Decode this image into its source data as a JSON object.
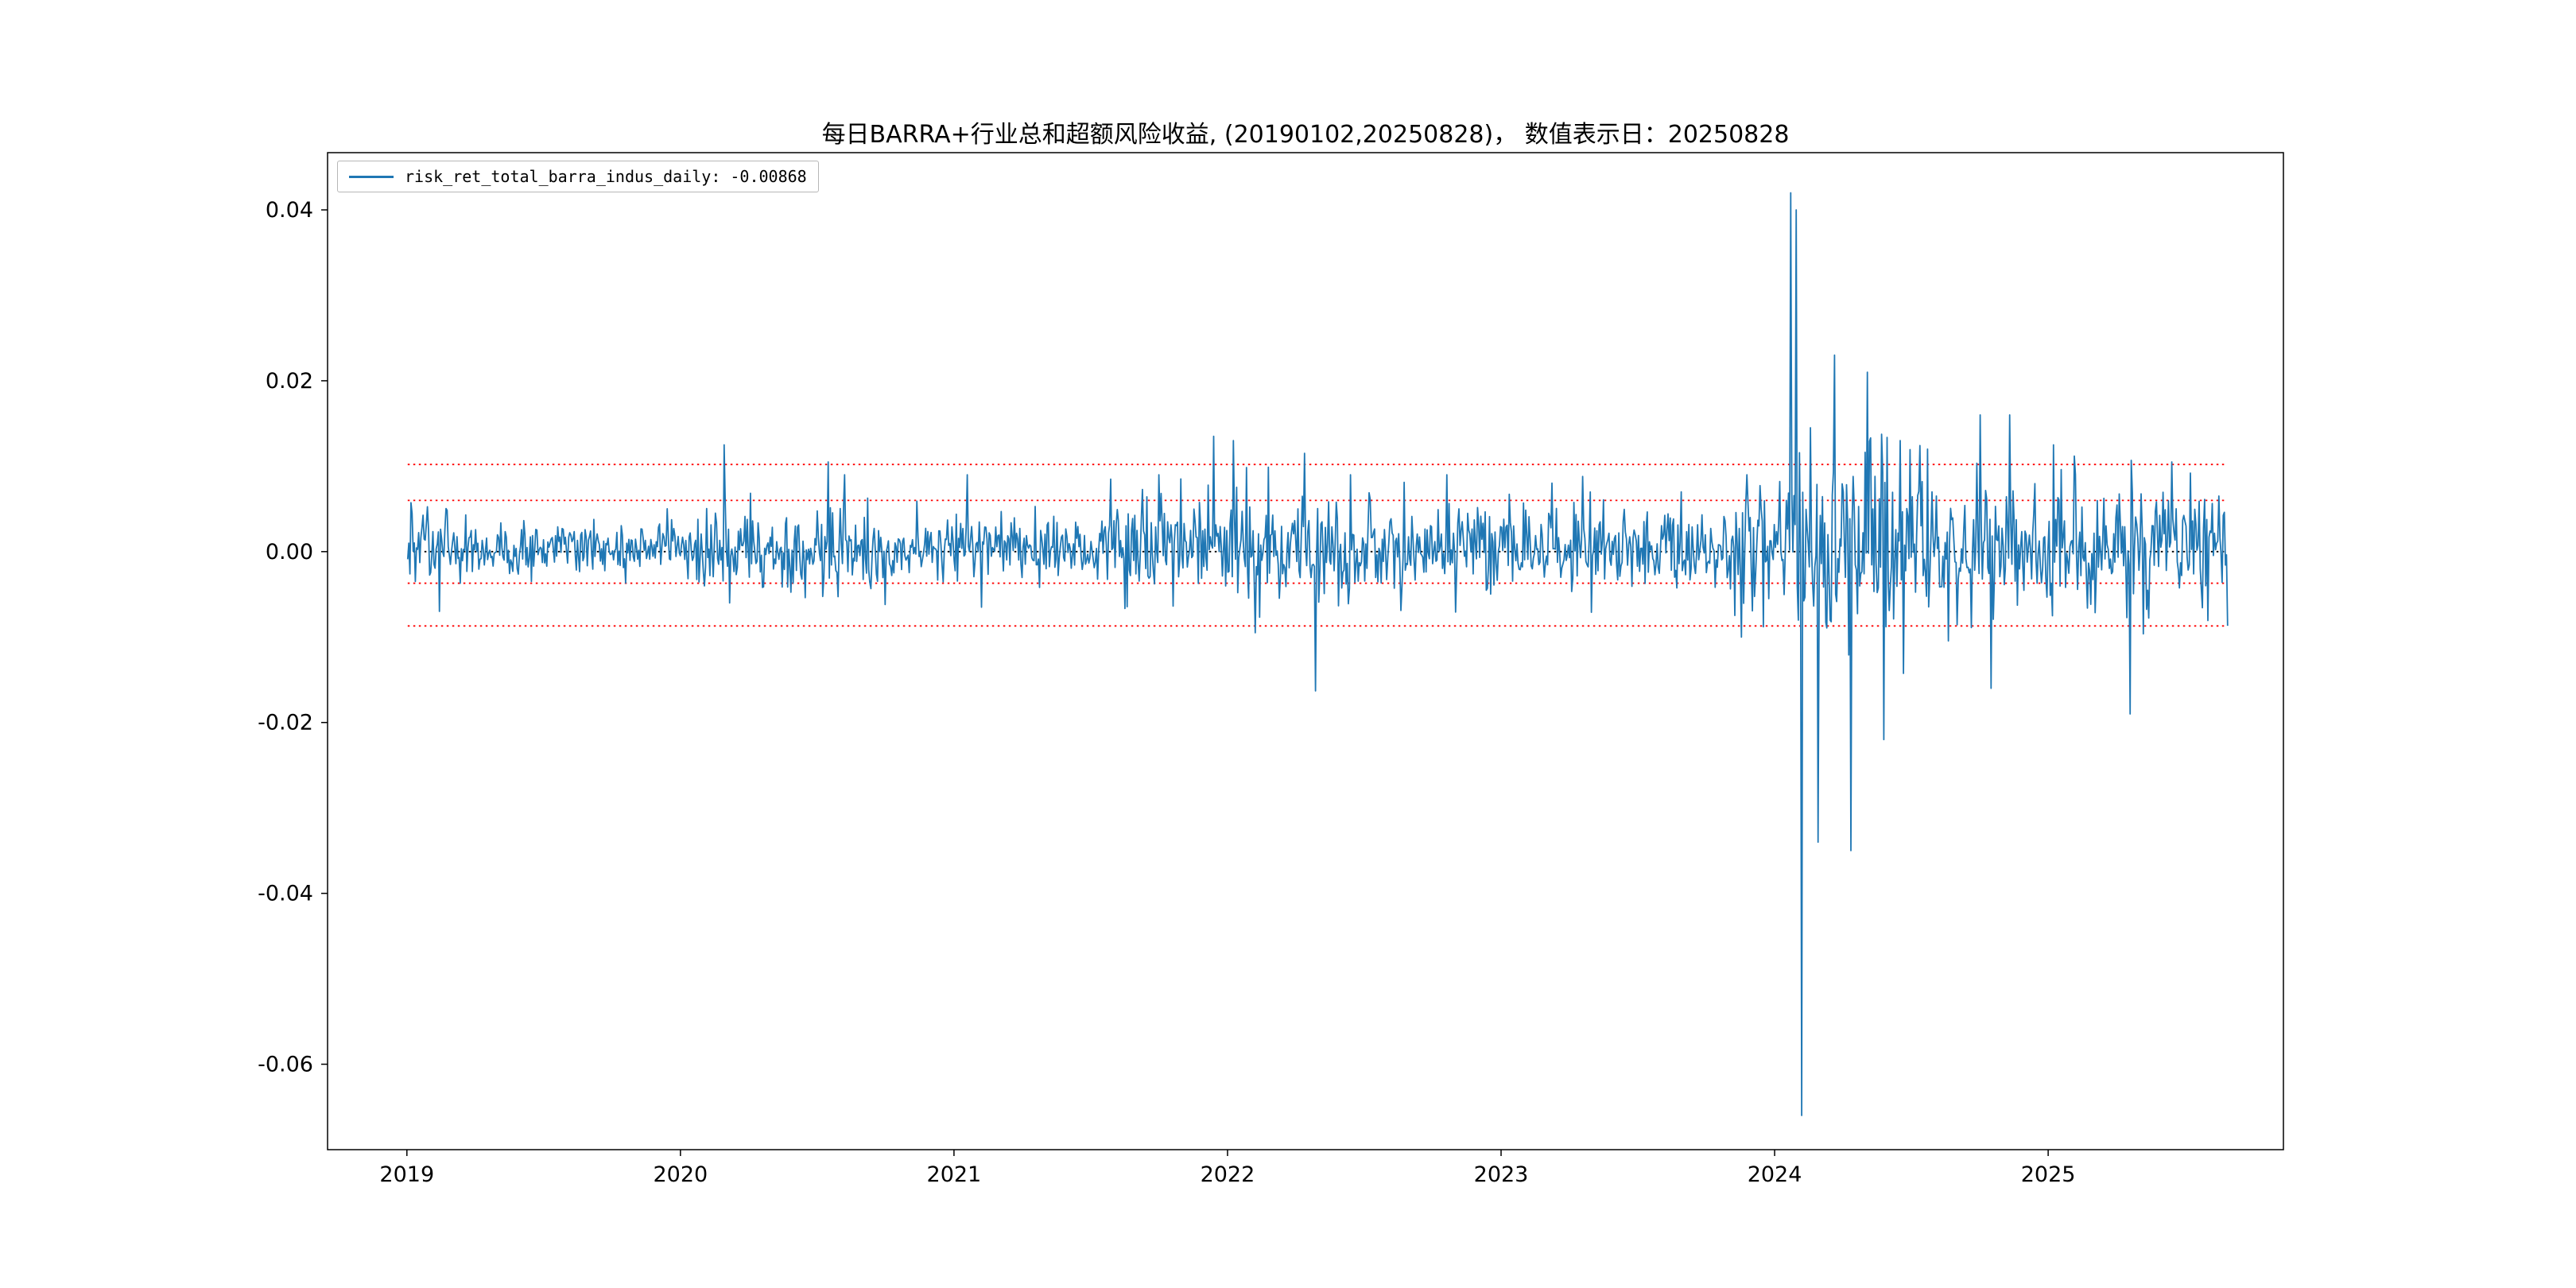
{
  "figure": {
    "background": "#ffffff"
  },
  "chart_data": {
    "type": "line",
    "title": "每日BARRA+行业总和超额风险收益, (20190102,20250828)，  数值表示日：20250828",
    "legend": [
      {
        "label": "risk_ret_total_barra_indus_daily: -0.00868",
        "color": "#1f77b4"
      }
    ],
    "series_name": "risk_ret_total_barra_indus_daily",
    "last_value": -0.00868,
    "value_date": "20250828",
    "date_range": [
      "20190102",
      "20250828"
    ],
    "x_start": 2019.003,
    "x_end": 2025.656,
    "xlim": [
      2018.71,
      2025.86
    ],
    "ylim": [
      -0.07,
      0.0467
    ],
    "xticks": [
      {
        "t": 2019,
        "label": "2019"
      },
      {
        "t": 2020,
        "label": "2020"
      },
      {
        "t": 2021,
        "label": "2021"
      },
      {
        "t": 2022,
        "label": "2022"
      },
      {
        "t": 2023,
        "label": "2023"
      },
      {
        "t": 2024,
        "label": "2024"
      },
      {
        "t": 2025,
        "label": "2025"
      }
    ],
    "yticks": [
      {
        "v": 0.04,
        "label": "0.04"
      },
      {
        "v": 0.02,
        "label": "0.02"
      },
      {
        "v": 0.0,
        "label": "0.00"
      },
      {
        "v": -0.02,
        "label": "-0.02"
      },
      {
        "v": -0.04,
        "label": "-0.04"
      },
      {
        "v": -0.06,
        "label": "-0.06"
      }
    ],
    "hlines": [
      {
        "y": 0.0,
        "color": "#000000",
        "style": "dotted",
        "name": "zero-line"
      },
      {
        "y": 0.0102,
        "color": "#ff0000",
        "style": "dotted",
        "name": "upper-2sigma-line"
      },
      {
        "y": 0.006,
        "color": "#ff0000",
        "style": "dotted",
        "name": "upper-1sigma-line"
      },
      {
        "y": -0.0037,
        "color": "#ff0000",
        "style": "dotted",
        "name": "lower-1sigma-line"
      },
      {
        "y": -0.0087,
        "color": "#ff0000",
        "style": "dotted",
        "name": "lower-2sigma-line"
      }
    ],
    "line_color": "#1f77b4",
    "line_width": 1.8,
    "points_per_year": 250,
    "seed": 20250828,
    "baseline_mean": 0.0005,
    "volatility_segments": [
      {
        "from": 2019.0,
        "to": 2019.15,
        "sigma": 0.0022
      },
      {
        "from": 2019.15,
        "to": 2020.05,
        "sigma": 0.0016
      },
      {
        "from": 2020.05,
        "to": 2020.75,
        "sigma": 0.0027
      },
      {
        "from": 2020.75,
        "to": 2021.55,
        "sigma": 0.0018
      },
      {
        "from": 2021.55,
        "to": 2022.55,
        "sigma": 0.0032
      },
      {
        "from": 2022.55,
        "to": 2023.85,
        "sigma": 0.0026
      },
      {
        "from": 2023.85,
        "to": 2024.05,
        "sigma": 0.0035
      },
      {
        "from": 2024.05,
        "to": 2024.55,
        "sigma": 0.0058
      },
      {
        "from": 2024.55,
        "to": 2025.66,
        "sigma": 0.0038
      }
    ],
    "spikes": [
      {
        "t": 2019.12,
        "v": -0.007
      },
      {
        "t": 2020.16,
        "v": 0.0125
      },
      {
        "t": 2020.18,
        "v": -0.006
      },
      {
        "t": 2020.54,
        "v": 0.0105
      },
      {
        "t": 2020.6,
        "v": 0.009
      },
      {
        "t": 2021.05,
        "v": 0.009
      },
      {
        "t": 2021.1,
        "v": -0.0065
      },
      {
        "t": 2021.75,
        "v": 0.009
      },
      {
        "t": 2021.95,
        "v": 0.0135
      },
      {
        "t": 2022.02,
        "v": 0.013
      },
      {
        "t": 2022.1,
        "v": -0.0095
      },
      {
        "t": 2022.28,
        "v": 0.0115
      },
      {
        "t": 2022.32,
        "v": -0.0163
      },
      {
        "t": 2022.45,
        "v": 0.009
      },
      {
        "t": 2022.8,
        "v": 0.009
      },
      {
        "t": 2023.3,
        "v": 0.0088
      },
      {
        "t": 2023.9,
        "v": 0.009
      },
      {
        "t": 2023.96,
        "v": -0.0088
      },
      {
        "t": 2024.06,
        "v": 0.042
      },
      {
        "t": 2024.08,
        "v": 0.04
      },
      {
        "t": 2024.1,
        "v": -0.066
      },
      {
        "t": 2024.13,
        "v": 0.0145
      },
      {
        "t": 2024.16,
        "v": -0.034
      },
      {
        "t": 2024.22,
        "v": 0.023
      },
      {
        "t": 2024.28,
        "v": -0.035
      },
      {
        "t": 2024.34,
        "v": 0.021
      },
      {
        "t": 2024.4,
        "v": -0.022
      },
      {
        "t": 2024.46,
        "v": 0.013
      },
      {
        "t": 2024.56,
        "v": 0.012
      },
      {
        "t": 2024.75,
        "v": 0.016
      },
      {
        "t": 2024.79,
        "v": -0.016
      },
      {
        "t": 2024.86,
        "v": 0.016
      },
      {
        "t": 2025.02,
        "v": 0.0125
      },
      {
        "t": 2025.1,
        "v": 0.009
      },
      {
        "t": 2025.3,
        "v": -0.019
      },
      {
        "t": 2025.45,
        "v": 0.0105
      },
      {
        "t": 2025.52,
        "v": 0.0092
      }
    ]
  }
}
